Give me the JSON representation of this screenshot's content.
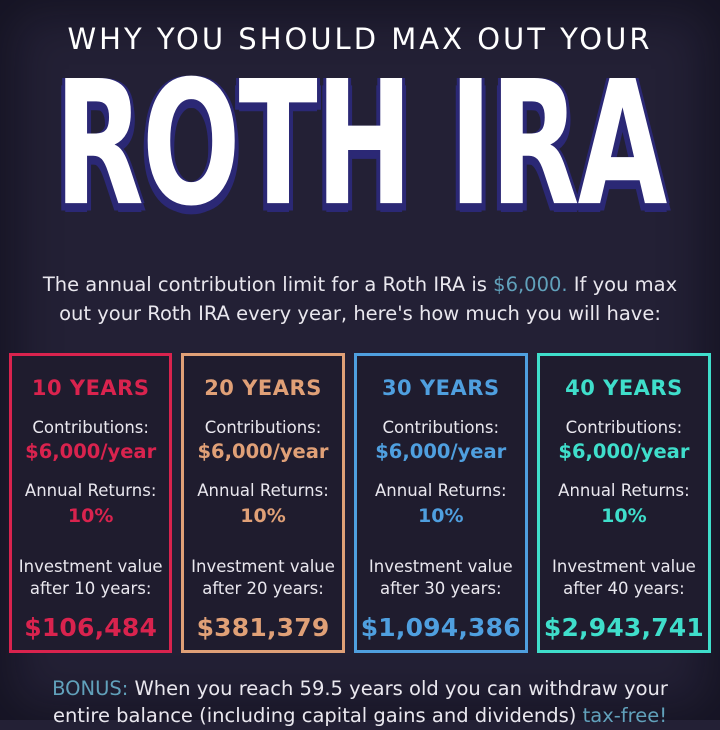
{
  "header": {
    "eyebrow": "WHY YOU SHOULD MAX OUT YOUR",
    "title": "ROTH IRA"
  },
  "intro": {
    "pre": "The annual contribution limit for a Roth IRA is ",
    "highlight": "$6,000.",
    "post": " If you max out your Roth IRA every year, here's how much you will have:"
  },
  "cards": [
    {
      "period": "10 YEARS",
      "contributions_label": "Contributions:",
      "contributions_value": "$6,000/year",
      "returns_label": "Annual Returns:",
      "returns_value": "10%",
      "value_label_line1": "Investment value",
      "value_label_line2": "after 10 years:",
      "final_value": "$106,484",
      "accent_color": "#d9234e"
    },
    {
      "period": "20 YEARS",
      "contributions_label": "Contributions:",
      "contributions_value": "$6,000/year",
      "returns_label": "Annual Returns:",
      "returns_value": "10%",
      "value_label_line1": "Investment value",
      "value_label_line2": "after 20 years:",
      "final_value": "$381,379",
      "accent_color": "#e0a077"
    },
    {
      "period": "30 YEARS",
      "contributions_label": "Contributions:",
      "contributions_value": "$6,000/year",
      "returns_label": "Annual Returns:",
      "returns_value": "10%",
      "value_label_line1": "Investment value",
      "value_label_line2": "after 30 years:",
      "final_value": "$1,094,386",
      "accent_color": "#4f9fdf"
    },
    {
      "period": "40 YEARS",
      "contributions_label": "Contributions:",
      "contributions_value": "$6,000/year",
      "returns_label": "Annual Returns:",
      "returns_value": "10%",
      "value_label_line1": "Investment value",
      "value_label_line2": "after 40 years:",
      "final_value": "$2,943,741",
      "accent_color": "#3fdecb"
    }
  ],
  "footer": {
    "bonus_label": "BONUS:",
    "body": " When you reach 59.5 years old you can withdraw your entire balance (including capital gains and dividends) ",
    "highlight": "tax-free!"
  },
  "colors": {
    "background": "#232035",
    "card_background": "#1f1c2e",
    "body_text": "#e9e7ee",
    "teal_highlight": "#61a1bb",
    "title_shadow": "#2b2875"
  }
}
